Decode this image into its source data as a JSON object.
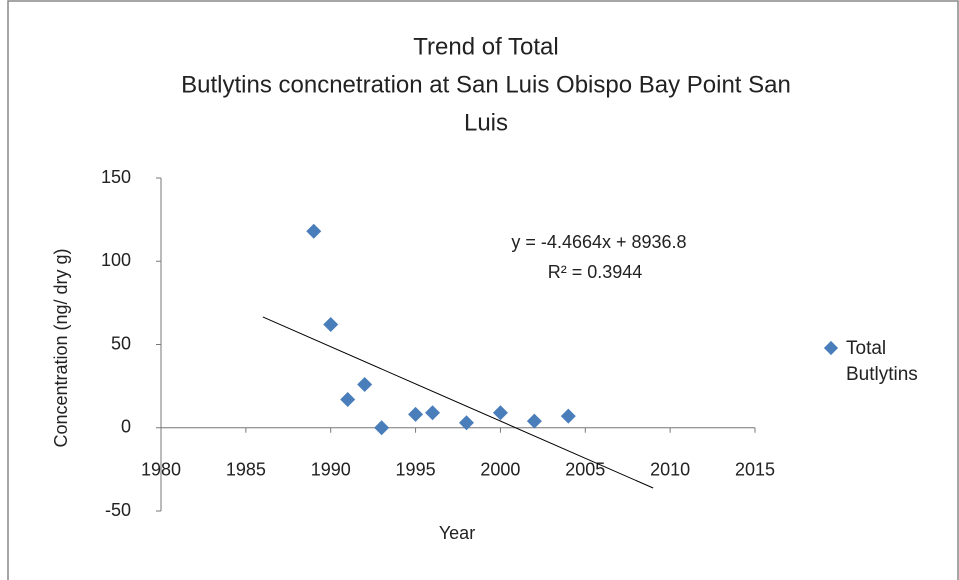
{
  "chart_data": {
    "type": "scatter",
    "title": [
      "Trend of Total",
      "Butlytins concnetration at San Luis Obispo Bay Point San",
      "Luis"
    ],
    "x_label": "Year",
    "y_label": "Concentration (ng/ dry g)",
    "x": [
      1989,
      1990,
      1991,
      1992,
      1993,
      1995,
      1996,
      1998,
      2000,
      2002,
      2004
    ],
    "series": [
      {
        "name": "Total Butlytins",
        "color": "#4a7ebb",
        "values": [
          118,
          62,
          17,
          26,
          0,
          8,
          9,
          3,
          9,
          4,
          7
        ]
      }
    ],
    "xlim": [
      1980,
      2015
    ],
    "xticks": [
      1980,
      1985,
      1990,
      1995,
      2000,
      2005,
      2010,
      2015
    ],
    "ylim": [
      -50,
      150
    ],
    "yticks": [
      -50,
      0,
      50,
      100,
      150
    ],
    "grid": false,
    "legend": "right",
    "trendline": {
      "slope": -4.4664,
      "intercept": 8936.8,
      "xlim": [
        1986,
        2009
      ],
      "equation": "y = -4.4664x + 8936.8",
      "r2": 0.3944,
      "r2_label": "R² = 0.3944"
    }
  }
}
